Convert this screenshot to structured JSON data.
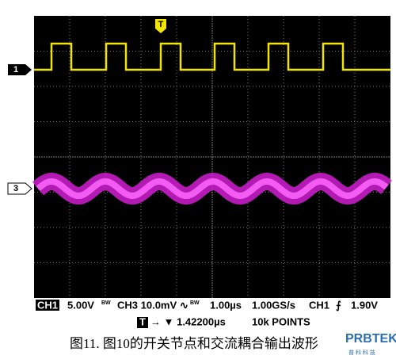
{
  "screen": {
    "trigger_marker": "T",
    "channel_markers": [
      "1",
      "3"
    ]
  },
  "status": {
    "line1": [
      "CH1",
      "5.00V",
      "BW",
      "CH3 10.0mV",
      "∿",
      "BW",
      "1.00µs",
      "1.00GS/s",
      "CH1",
      "⨍",
      "1.90V"
    ],
    "line2": [
      "T",
      "→ ▼ 1.42200µs",
      "10k POINTS"
    ]
  },
  "caption": "图11. 图10的开关节点和交流耦合输出波形",
  "logo": {
    "name": "PRBTEK",
    "sub": "普 科 科 技"
  }
}
